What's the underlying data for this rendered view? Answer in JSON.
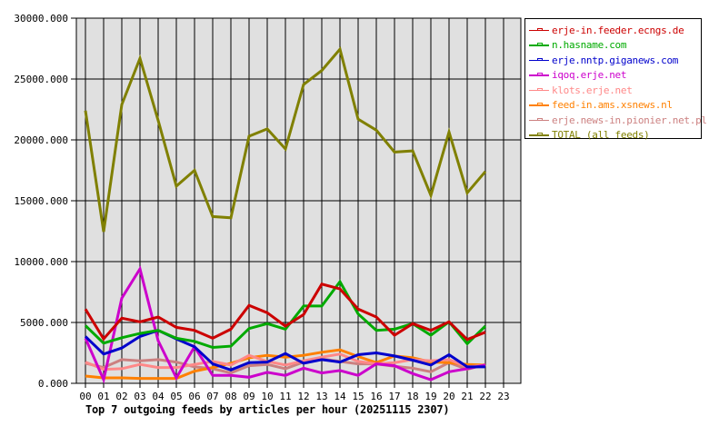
{
  "chart_data": {
    "type": "line",
    "title": "Top 7 outgoing feeds by articles per hour (20251115 2307)",
    "xlabel": "",
    "ylabel": "",
    "x": [
      "00",
      "01",
      "02",
      "03",
      "04",
      "05",
      "06",
      "07",
      "08",
      "09",
      "10",
      "11",
      "12",
      "13",
      "14",
      "15",
      "16",
      "17",
      "18",
      "19",
      "20",
      "21",
      "22",
      "23"
    ],
    "y_ticks": [
      "0.000",
      "5000.000",
      "10000.000",
      "15000.000",
      "20000.000",
      "25000.000",
      "30000.000"
    ],
    "ylim": [
      0,
      30000
    ],
    "grid": true,
    "legend_position": "right",
    "series": [
      {
        "name": "erje-in.feeder.ecngs.de",
        "color": "#cc0000",
        "values": [
          6100,
          3650,
          5350,
          5050,
          5450,
          4600,
          4350,
          3700,
          4450,
          6400,
          5800,
          4700,
          5650,
          8150,
          7750,
          6100,
          5450,
          3950,
          4900,
          4350,
          5050,
          3600,
          4200
        ]
      },
      {
        "name": "n.hasname.com",
        "color": "#00aa00",
        "values": [
          4750,
          3300,
          3750,
          4100,
          4350,
          3700,
          3450,
          2950,
          3050,
          4500,
          4900,
          4450,
          6350,
          6350,
          8350,
          5700,
          4350,
          4450,
          4900,
          3950,
          5050,
          3250,
          4700
        ]
      },
      {
        "name": "erje.nntp.giganews.com",
        "color": "#0000cc",
        "values": [
          3850,
          2400,
          2900,
          3850,
          4350,
          3650,
          3000,
          1600,
          1100,
          1700,
          1750,
          2450,
          1650,
          1950,
          1750,
          2350,
          2500,
          2250,
          1900,
          1500,
          2350,
          1350,
          1350
        ]
      },
      {
        "name": "iqoq.erje.net",
        "color": "#cc00cc",
        "values": [
          3700,
          300,
          7000,
          9400,
          3500,
          450,
          3000,
          650,
          650,
          500,
          900,
          650,
          1250,
          850,
          1050,
          650,
          1600,
          1450,
          800,
          300,
          950,
          1200,
          1500
        ]
      },
      {
        "name": "klots.erje.net",
        "color": "#ff8888",
        "values": [
          1750,
          1150,
          1200,
          1550,
          1300,
          1300,
          1550,
          1800,
          1500,
          2300,
          1800,
          1500,
          1850,
          2150,
          2400,
          1800,
          1600,
          1700,
          1950,
          1850,
          1950,
          1350,
          1500
        ]
      },
      {
        "name": "feed-in.ams.xsnews.nl",
        "color": "#ff8000",
        "values": [
          600,
          450,
          450,
          400,
          400,
          400,
          1000,
          1300,
          1650,
          2100,
          2300,
          2150,
          2300,
          2550,
          2750,
          2200,
          1700,
          2250,
          2100,
          1750,
          1700,
          1550,
          1500
        ]
      },
      {
        "name": "erje.news-in.pionier.net.pl",
        "color": "#cc8080",
        "values": [
          1650,
          1300,
          1950,
          1850,
          1950,
          1750,
          1350,
          1200,
          850,
          1450,
          1550,
          1200,
          1750,
          2000,
          1800,
          1600,
          1600,
          1400,
          1250,
          950,
          1700,
          1150,
          1550
        ]
      },
      {
        "name": "TOTAL (all feeds)",
        "color": "#808000",
        "values": [
          22400,
          12450,
          22900,
          26700,
          21600,
          16200,
          17500,
          13700,
          13600,
          20300,
          20900,
          19250,
          24550,
          25700,
          27450,
          21700,
          20800,
          19000,
          19100,
          15450,
          20650,
          15650,
          17400
        ]
      }
    ]
  },
  "legend": {
    "items": [
      {
        "label": "erje-in.feeder.ecngs.de",
        "color": "#cc0000"
      },
      {
        "label": "n.hasname.com",
        "color": "#00aa00"
      },
      {
        "label": "erje.nntp.giganews.com",
        "color": "#0000cc"
      },
      {
        "label": "iqoq.erje.net",
        "color": "#cc00cc"
      },
      {
        "label": "klots.erje.net",
        "color": "#ff8888"
      },
      {
        "label": "feed-in.ams.xsnews.nl",
        "color": "#ff8000"
      },
      {
        "label": "erje.news-in.pionier.net.pl",
        "color": "#cc8080"
      },
      {
        "label": "TOTAL (all feeds)",
        "color": "#808000"
      }
    ]
  },
  "colors": {
    "plot_bg": "#e0e0e0",
    "grid": "#000000"
  }
}
